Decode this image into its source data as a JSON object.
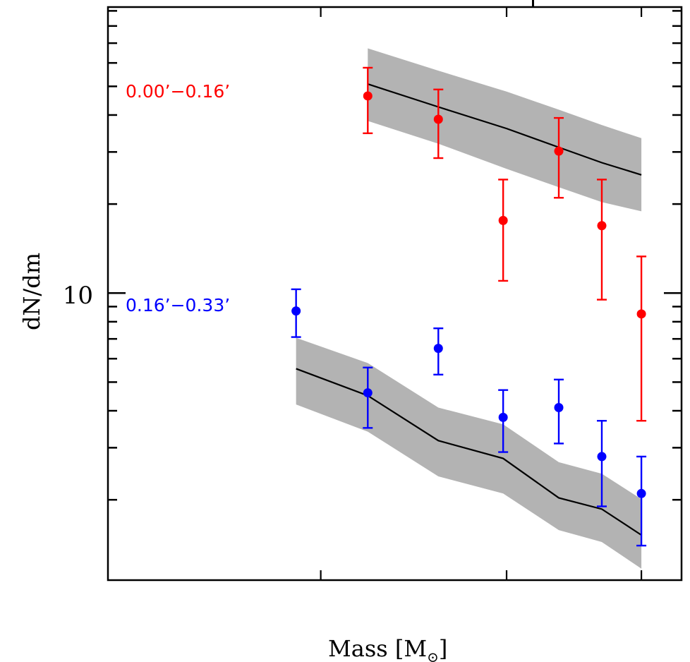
{
  "chart_data": {
    "type": "scatter",
    "title": "",
    "xlabel": "Mass [M⊙]",
    "xlabel_main": "Mass [M",
    "xlabel_sub": "⊙",
    "xlabel_end": "]",
    "ylabel": "dN/dm",
    "yscale": "log",
    "ylim": [
      1.07,
      92.7
    ],
    "y_major_ticks": [
      {
        "value": 10,
        "label": "10"
      }
    ],
    "y_minor_ticks": [
      2,
      3,
      4,
      5,
      6,
      7,
      8,
      9,
      20,
      30,
      40,
      50,
      60,
      70,
      80,
      90
    ],
    "x_units": "axis fraction (tick labels not visible)",
    "xlim": [
      0,
      1
    ],
    "x_ticks": [
      0.371,
      0.695,
      0.93
    ],
    "grid": false,
    "cut_title_glyph": "p",
    "series": [
      {
        "name": "0.00’−0.16’",
        "color": "#ff0000",
        "legend_position": "upper-left",
        "points": [
          {
            "x": 0.453,
            "y": 46.4,
            "ylo": 34.7,
            "yhi": 57.8
          },
          {
            "x": 0.576,
            "y": 38.7,
            "ylo": 28.6,
            "yhi": 48.8
          },
          {
            "x": 0.689,
            "y": 17.6,
            "ylo": 11.0,
            "yhi": 24.2
          },
          {
            "x": 0.786,
            "y": 30.2,
            "ylo": 21.0,
            "yhi": 39.1
          },
          {
            "x": 0.861,
            "y": 16.9,
            "ylo": 9.5,
            "yhi": 24.2
          },
          {
            "x": 0.93,
            "y": 8.5,
            "ylo": 3.7,
            "yhi": 13.3
          }
        ],
        "model": {
          "color": "#000000",
          "band_color": "#b3b3b3",
          "x": [
            0.453,
            0.576,
            0.695,
            0.786,
            0.861,
            0.93
          ],
          "mid": [
            50.9,
            42.6,
            36.0,
            31.1,
            27.6,
            25.1
          ],
          "low": [
            38.2,
            32.0,
            26.3,
            22.8,
            20.3,
            18.9
          ],
          "high": [
            67.2,
            56.5,
            48.0,
            41.7,
            37.0,
            33.4
          ]
        }
      },
      {
        "name": "0.16’−0.33’",
        "color": "#0000ff",
        "legend_position": "left-middle",
        "points": [
          {
            "x": 0.328,
            "y": 8.7,
            "ylo": 7.1,
            "yhi": 10.3
          },
          {
            "x": 0.453,
            "y": 4.6,
            "ylo": 3.5,
            "yhi": 5.6
          },
          {
            "x": 0.576,
            "y": 6.5,
            "ylo": 5.3,
            "yhi": 7.6
          },
          {
            "x": 0.689,
            "y": 3.8,
            "ylo": 2.9,
            "yhi": 4.7
          },
          {
            "x": 0.786,
            "y": 4.1,
            "ylo": 3.1,
            "yhi": 5.1
          },
          {
            "x": 0.861,
            "y": 2.8,
            "ylo": 1.9,
            "yhi": 3.7
          },
          {
            "x": 0.93,
            "y": 2.1,
            "ylo": 1.4,
            "yhi": 2.8
          }
        ],
        "model": {
          "color": "#000000",
          "band_color": "#b3b3b3",
          "x": [
            0.328,
            0.453,
            0.576,
            0.689,
            0.786,
            0.861,
            0.93
          ],
          "low": [
            4.2,
            3.4,
            2.4,
            2.1,
            1.58,
            1.44,
            1.17
          ],
          "mid": [
            5.55,
            4.5,
            3.17,
            2.76,
            2.03,
            1.86,
            1.52
          ],
          "high": [
            7.06,
            5.8,
            4.1,
            3.6,
            2.68,
            2.45,
            2.01
          ]
        }
      }
    ]
  }
}
